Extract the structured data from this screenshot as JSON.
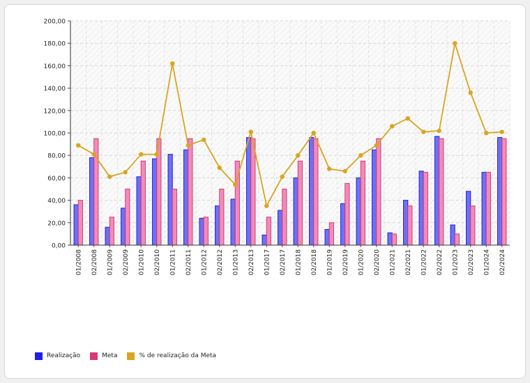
{
  "colors": {
    "realizacao": "#1f1fe6",
    "meta": "#d63a78",
    "percentual": "#d9a520"
  },
  "legend": {
    "realizacao": "Realização",
    "meta": "Meta",
    "percentual": "% de realização da Meta"
  },
  "chart_data": {
    "type": "bar",
    "title": "",
    "xlabel": "",
    "ylabel": "",
    "ylim": [
      0,
      200
    ],
    "yticks": [
      "0,00",
      "20,00",
      "40,00",
      "60,00",
      "80,00",
      "100,00",
      "120,00",
      "140,00",
      "160,00",
      "180,00",
      "200,00"
    ],
    "grid": true,
    "legend_position": "bottom",
    "categories": [
      "01/2008",
      "02/2008",
      "01/2009",
      "02/2009",
      "01/2010",
      "02/2010",
      "01/2011",
      "02/2011",
      "01/2012",
      "02/2012",
      "01/2013",
      "02/2013",
      "01/2017",
      "02/2017",
      "01/2018",
      "02/2018",
      "01/2019",
      "02/2019",
      "01/2020",
      "02/2020",
      "01/2021",
      "02/2021",
      "01/2022",
      "02/2022",
      "01/2023",
      "02/2023",
      "01/2024",
      "02/2024"
    ],
    "series": [
      {
        "name": "Realização",
        "type": "bar",
        "values": [
          36,
          78,
          16,
          33,
          61,
          77,
          81,
          85,
          24,
          35,
          41,
          96,
          9,
          31,
          60,
          96,
          14,
          37,
          60,
          85,
          11,
          40,
          66,
          97,
          18,
          48,
          65,
          96
        ]
      },
      {
        "name": "Meta",
        "type": "bar",
        "values": [
          40,
          95,
          25,
          50,
          75,
          95,
          50,
          95,
          25,
          50,
          75,
          95,
          25,
          50,
          75,
          95,
          20,
          55,
          75,
          95,
          10,
          35,
          65,
          95,
          10,
          35,
          65,
          95
        ]
      },
      {
        "name": "% de realização da Meta",
        "type": "line",
        "values": [
          89,
          81,
          61,
          65,
          81,
          81,
          162,
          89,
          94,
          69,
          54,
          101,
          35,
          61,
          80,
          100,
          68,
          66,
          80,
          89,
          106,
          113,
          101,
          102,
          180,
          136,
          100,
          101
        ]
      }
    ]
  }
}
